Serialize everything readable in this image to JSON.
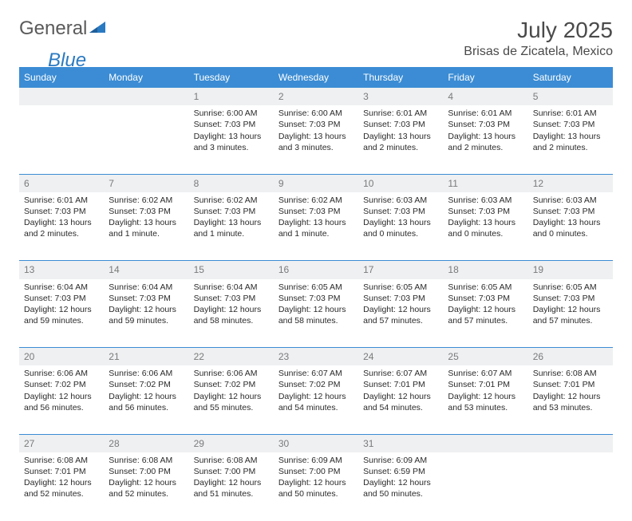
{
  "brand": {
    "word1": "General",
    "word2": "Blue"
  },
  "title": "July 2025",
  "location": "Brisas de Zicatela, Mexico",
  "colors": {
    "header_bg": "#3b8cd4",
    "header_text": "#ffffff",
    "daynum_bg": "#eef0f2",
    "daynum_text": "#7a7a7a",
    "body_text": "#2a2a2a",
    "logo_gray": "#5a5a5a",
    "logo_blue": "#2a7ac2",
    "rule": "#3b8cd4"
  },
  "day_names": [
    "Sunday",
    "Monday",
    "Tuesday",
    "Wednesday",
    "Thursday",
    "Friday",
    "Saturday"
  ],
  "weeks": [
    [
      null,
      null,
      {
        "n": "1",
        "r": "6:00 AM",
        "s": "7:03 PM",
        "d": "13 hours and 3 minutes."
      },
      {
        "n": "2",
        "r": "6:00 AM",
        "s": "7:03 PM",
        "d": "13 hours and 3 minutes."
      },
      {
        "n": "3",
        "r": "6:01 AM",
        "s": "7:03 PM",
        "d": "13 hours and 2 minutes."
      },
      {
        "n": "4",
        "r": "6:01 AM",
        "s": "7:03 PM",
        "d": "13 hours and 2 minutes."
      },
      {
        "n": "5",
        "r": "6:01 AM",
        "s": "7:03 PM",
        "d": "13 hours and 2 minutes."
      }
    ],
    [
      {
        "n": "6",
        "r": "6:01 AM",
        "s": "7:03 PM",
        "d": "13 hours and 2 minutes."
      },
      {
        "n": "7",
        "r": "6:02 AM",
        "s": "7:03 PM",
        "d": "13 hours and 1 minute."
      },
      {
        "n": "8",
        "r": "6:02 AM",
        "s": "7:03 PM",
        "d": "13 hours and 1 minute."
      },
      {
        "n": "9",
        "r": "6:02 AM",
        "s": "7:03 PM",
        "d": "13 hours and 1 minute."
      },
      {
        "n": "10",
        "r": "6:03 AM",
        "s": "7:03 PM",
        "d": "13 hours and 0 minutes."
      },
      {
        "n": "11",
        "r": "6:03 AM",
        "s": "7:03 PM",
        "d": "13 hours and 0 minutes."
      },
      {
        "n": "12",
        "r": "6:03 AM",
        "s": "7:03 PM",
        "d": "13 hours and 0 minutes."
      }
    ],
    [
      {
        "n": "13",
        "r": "6:04 AM",
        "s": "7:03 PM",
        "d": "12 hours and 59 minutes."
      },
      {
        "n": "14",
        "r": "6:04 AM",
        "s": "7:03 PM",
        "d": "12 hours and 59 minutes."
      },
      {
        "n": "15",
        "r": "6:04 AM",
        "s": "7:03 PM",
        "d": "12 hours and 58 minutes."
      },
      {
        "n": "16",
        "r": "6:05 AM",
        "s": "7:03 PM",
        "d": "12 hours and 58 minutes."
      },
      {
        "n": "17",
        "r": "6:05 AM",
        "s": "7:03 PM",
        "d": "12 hours and 57 minutes."
      },
      {
        "n": "18",
        "r": "6:05 AM",
        "s": "7:03 PM",
        "d": "12 hours and 57 minutes."
      },
      {
        "n": "19",
        "r": "6:05 AM",
        "s": "7:03 PM",
        "d": "12 hours and 57 minutes."
      }
    ],
    [
      {
        "n": "20",
        "r": "6:06 AM",
        "s": "7:02 PM",
        "d": "12 hours and 56 minutes."
      },
      {
        "n": "21",
        "r": "6:06 AM",
        "s": "7:02 PM",
        "d": "12 hours and 56 minutes."
      },
      {
        "n": "22",
        "r": "6:06 AM",
        "s": "7:02 PM",
        "d": "12 hours and 55 minutes."
      },
      {
        "n": "23",
        "r": "6:07 AM",
        "s": "7:02 PM",
        "d": "12 hours and 54 minutes."
      },
      {
        "n": "24",
        "r": "6:07 AM",
        "s": "7:01 PM",
        "d": "12 hours and 54 minutes."
      },
      {
        "n": "25",
        "r": "6:07 AM",
        "s": "7:01 PM",
        "d": "12 hours and 53 minutes."
      },
      {
        "n": "26",
        "r": "6:08 AM",
        "s": "7:01 PM",
        "d": "12 hours and 53 minutes."
      }
    ],
    [
      {
        "n": "27",
        "r": "6:08 AM",
        "s": "7:01 PM",
        "d": "12 hours and 52 minutes."
      },
      {
        "n": "28",
        "r": "6:08 AM",
        "s": "7:00 PM",
        "d": "12 hours and 52 minutes."
      },
      {
        "n": "29",
        "r": "6:08 AM",
        "s": "7:00 PM",
        "d": "12 hours and 51 minutes."
      },
      {
        "n": "30",
        "r": "6:09 AM",
        "s": "7:00 PM",
        "d": "12 hours and 50 minutes."
      },
      {
        "n": "31",
        "r": "6:09 AM",
        "s": "6:59 PM",
        "d": "12 hours and 50 minutes."
      },
      null,
      null
    ]
  ],
  "labels": {
    "sunrise": "Sunrise:",
    "sunset": "Sunset:",
    "daylight": "Daylight:"
  }
}
